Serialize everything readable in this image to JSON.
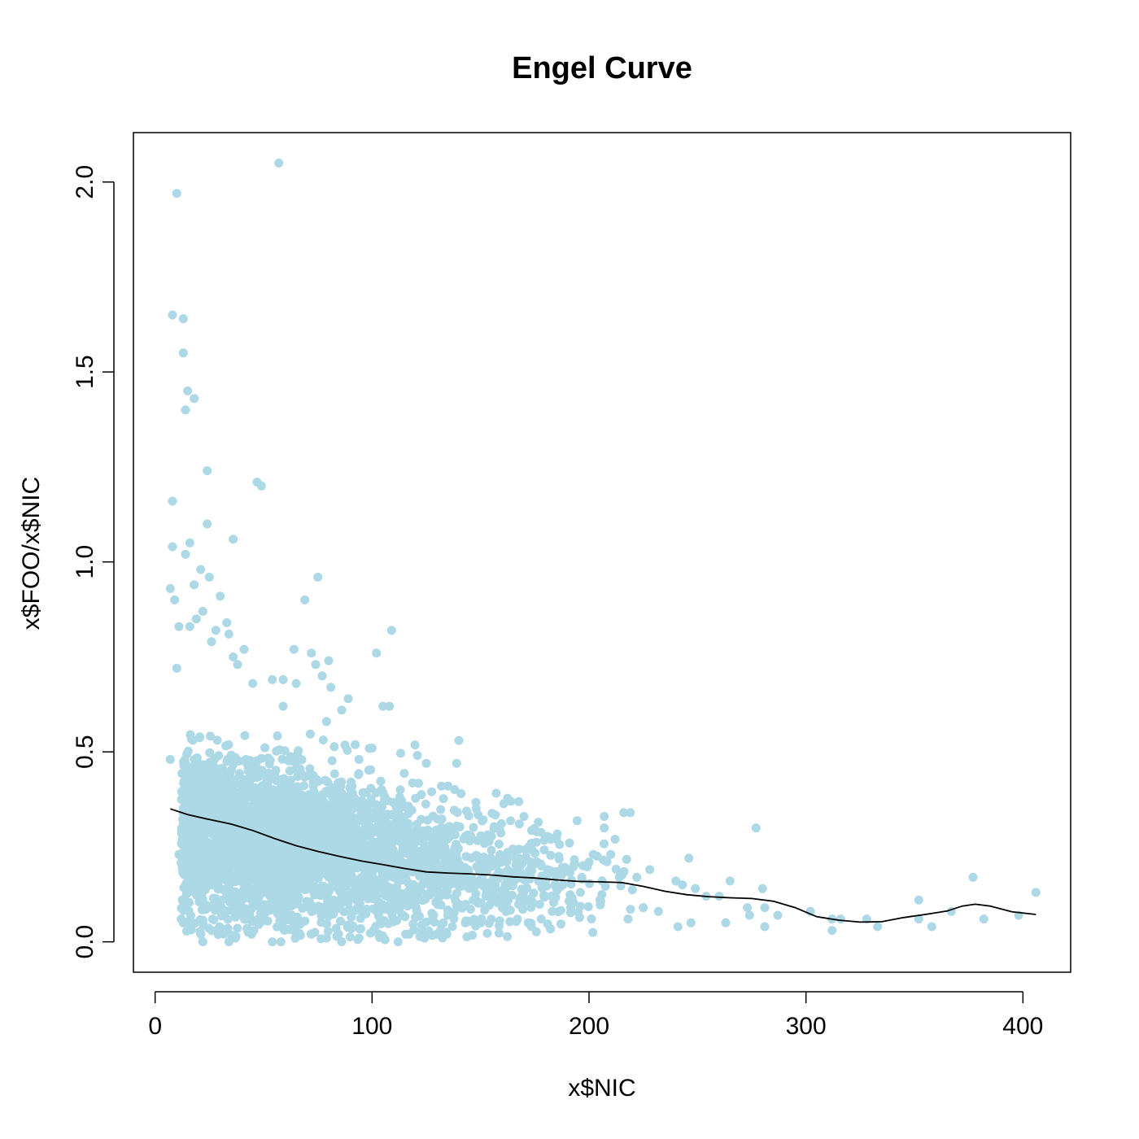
{
  "chart_data": {
    "type": "scatter",
    "title": "Engel Curve",
    "xlabel": "x$NIC",
    "ylabel": "x$FOO/x$NIC",
    "xlim": [
      -10,
      422
    ],
    "ylim": [
      -0.08,
      2.13
    ],
    "x_ticks": [
      0,
      100,
      200,
      300,
      400
    ],
    "y_ticks": [
      0.0,
      0.5,
      1.0,
      1.5,
      2.0
    ],
    "x_tick_labels": [
      "0",
      "100",
      "200",
      "300",
      "400"
    ],
    "y_tick_labels": [
      "0.0",
      "0.5",
      "1.0",
      "1.5",
      "2.0"
    ],
    "grid": false,
    "legend": "none",
    "point_color": "#ADD8E6",
    "line_color": "#000000",
    "points": [
      [
        10,
        1.97
      ],
      [
        57,
        2.05
      ],
      [
        8,
        1.65
      ],
      [
        13,
        1.64
      ],
      [
        13,
        1.55
      ],
      [
        15,
        1.45
      ],
      [
        18,
        1.43
      ],
      [
        14,
        1.4
      ],
      [
        24,
        1.24
      ],
      [
        47,
        1.21
      ],
      [
        49,
        1.2
      ],
      [
        8,
        1.16
      ],
      [
        24,
        1.1
      ],
      [
        36,
        1.06
      ],
      [
        16,
        1.05
      ],
      [
        8,
        1.04
      ],
      [
        14,
        1.02
      ],
      [
        21,
        0.98
      ],
      [
        25,
        0.96
      ],
      [
        75,
        0.96
      ],
      [
        18,
        0.94
      ],
      [
        7,
        0.93
      ],
      [
        30,
        0.91
      ],
      [
        9,
        0.9
      ],
      [
        69,
        0.9
      ],
      [
        22,
        0.87
      ],
      [
        19,
        0.85
      ],
      [
        11,
        0.83
      ],
      [
        16,
        0.83
      ],
      [
        33,
        0.84
      ],
      [
        28,
        0.82
      ],
      [
        109,
        0.82
      ],
      [
        34,
        0.81
      ],
      [
        26,
        0.79
      ],
      [
        41,
        0.77
      ],
      [
        64,
        0.77
      ],
      [
        72,
        0.76
      ],
      [
        102,
        0.76
      ],
      [
        36,
        0.75
      ],
      [
        80,
        0.74
      ],
      [
        38,
        0.73
      ],
      [
        74,
        0.73
      ],
      [
        10,
        0.72
      ],
      [
        77,
        0.7
      ],
      [
        59,
        0.69
      ],
      [
        54,
        0.69
      ],
      [
        45,
        0.68
      ],
      [
        65,
        0.68
      ],
      [
        81,
        0.67
      ],
      [
        89,
        0.64
      ],
      [
        105,
        0.62
      ],
      [
        108,
        0.62
      ],
      [
        86,
        0.61
      ],
      [
        79,
        0.58
      ],
      [
        59,
        0.62
      ],
      [
        140,
        0.53
      ],
      [
        100,
        0.51
      ],
      [
        7,
        0.48
      ],
      [
        125,
        0.47
      ],
      [
        139,
        0.47
      ],
      [
        94,
        0.48
      ],
      [
        113,
        0.4
      ],
      [
        132,
        0.41
      ],
      [
        135,
        0.41
      ],
      [
        141,
        0.39
      ],
      [
        164,
        0.37
      ],
      [
        148,
        0.35
      ],
      [
        170,
        0.33
      ],
      [
        176,
        0.29
      ],
      [
        185,
        0.27
      ],
      [
        191,
        0.26
      ],
      [
        216,
        0.34
      ],
      [
        219,
        0.34
      ],
      [
        207,
        0.33
      ],
      [
        207,
        0.3
      ],
      [
        212,
        0.27
      ],
      [
        202,
        0.23
      ],
      [
        210,
        0.23
      ],
      [
        200,
        0.21
      ],
      [
        214,
        0.17
      ],
      [
        222,
        0.17
      ],
      [
        228,
        0.19
      ],
      [
        246,
        0.22
      ],
      [
        277,
        0.3
      ],
      [
        265,
        0.16
      ],
      [
        240,
        0.16
      ],
      [
        243,
        0.15
      ],
      [
        249,
        0.14
      ],
      [
        254,
        0.12
      ],
      [
        260,
        0.12
      ],
      [
        280,
        0.14
      ],
      [
        273,
        0.09
      ],
      [
        281,
        0.09
      ],
      [
        274,
        0.07
      ],
      [
        287,
        0.07
      ],
      [
        302,
        0.08
      ],
      [
        312,
        0.06
      ],
      [
        316,
        0.06
      ],
      [
        312,
        0.03
      ],
      [
        328,
        0.06
      ],
      [
        333,
        0.04
      ],
      [
        352,
        0.11
      ],
      [
        352,
        0.06
      ],
      [
        358,
        0.04
      ],
      [
        367,
        0.08
      ],
      [
        377,
        0.17
      ],
      [
        382,
        0.06
      ],
      [
        398,
        0.07
      ],
      [
        406,
        0.13
      ],
      [
        281,
        0.04
      ],
      [
        263,
        0.05
      ],
      [
        247,
        0.05
      ],
      [
        241,
        0.04
      ],
      [
        232,
        0.08
      ],
      [
        225,
        0.09
      ],
      [
        218,
        0.06
      ],
      [
        205,
        0.11
      ],
      [
        196,
        0.13
      ],
      [
        188,
        0.15
      ],
      [
        183,
        0.08
      ],
      [
        178,
        0.06
      ],
      [
        172,
        0.05
      ],
      [
        167,
        0.06
      ],
      [
        160,
        0.09
      ],
      [
        155,
        0.06
      ],
      [
        150,
        0.05
      ],
      [
        143,
        0.05
      ],
      [
        137,
        0.04
      ],
      [
        130,
        0.02
      ],
      [
        123,
        0.03
      ],
      [
        117,
        0.02
      ],
      [
        112,
        0.0
      ],
      [
        103,
        0.02
      ],
      [
        94,
        0.01
      ],
      [
        86,
        0.0
      ],
      [
        79,
        0.01
      ],
      [
        72,
        0.02
      ],
      [
        58,
        0.0
      ],
      [
        54,
        0.0
      ],
      [
        37,
        0.01
      ],
      [
        34,
        0.0
      ],
      [
        22,
        0.0
      ],
      [
        21,
        0.02
      ],
      [
        13,
        0.05
      ],
      [
        12,
        0.06
      ],
      [
        11,
        0.23
      ]
    ],
    "curve": [
      [
        7,
        0.35
      ],
      [
        15,
        0.335
      ],
      [
        25,
        0.322
      ],
      [
        35,
        0.31
      ],
      [
        45,
        0.293
      ],
      [
        55,
        0.272
      ],
      [
        65,
        0.253
      ],
      [
        75,
        0.238
      ],
      [
        85,
        0.225
      ],
      [
        95,
        0.213
      ],
      [
        105,
        0.203
      ],
      [
        115,
        0.193
      ],
      [
        125,
        0.184
      ],
      [
        135,
        0.181
      ],
      [
        145,
        0.179
      ],
      [
        155,
        0.176
      ],
      [
        165,
        0.171
      ],
      [
        175,
        0.168
      ],
      [
        185,
        0.163
      ],
      [
        195,
        0.159
      ],
      [
        205,
        0.158
      ],
      [
        215,
        0.156
      ],
      [
        225,
        0.146
      ],
      [
        235,
        0.133
      ],
      [
        245,
        0.124
      ],
      [
        255,
        0.119
      ],
      [
        265,
        0.116
      ],
      [
        275,
        0.114
      ],
      [
        285,
        0.107
      ],
      [
        295,
        0.09
      ],
      [
        305,
        0.066
      ],
      [
        315,
        0.057
      ],
      [
        325,
        0.052
      ],
      [
        335,
        0.053
      ],
      [
        345,
        0.064
      ],
      [
        355,
        0.072
      ],
      [
        365,
        0.081
      ],
      [
        372,
        0.094
      ],
      [
        378,
        0.099
      ],
      [
        385,
        0.094
      ],
      [
        395,
        0.079
      ],
      [
        406,
        0.072
      ]
    ],
    "cloud_clusters": [
      {
        "cx": 40,
        "cy": 0.28,
        "sx": 22,
        "sy": 0.12,
        "n": 1400
      },
      {
        "cx": 75,
        "cy": 0.24,
        "sx": 25,
        "sy": 0.1,
        "n": 1000
      },
      {
        "cx": 115,
        "cy": 0.2,
        "sx": 22,
        "sy": 0.085,
        "n": 520
      },
      {
        "cx": 155,
        "cy": 0.17,
        "sx": 20,
        "sy": 0.07,
        "n": 220
      },
      {
        "cx": 190,
        "cy": 0.15,
        "sx": 15,
        "sy": 0.055,
        "n": 70
      }
    ]
  }
}
